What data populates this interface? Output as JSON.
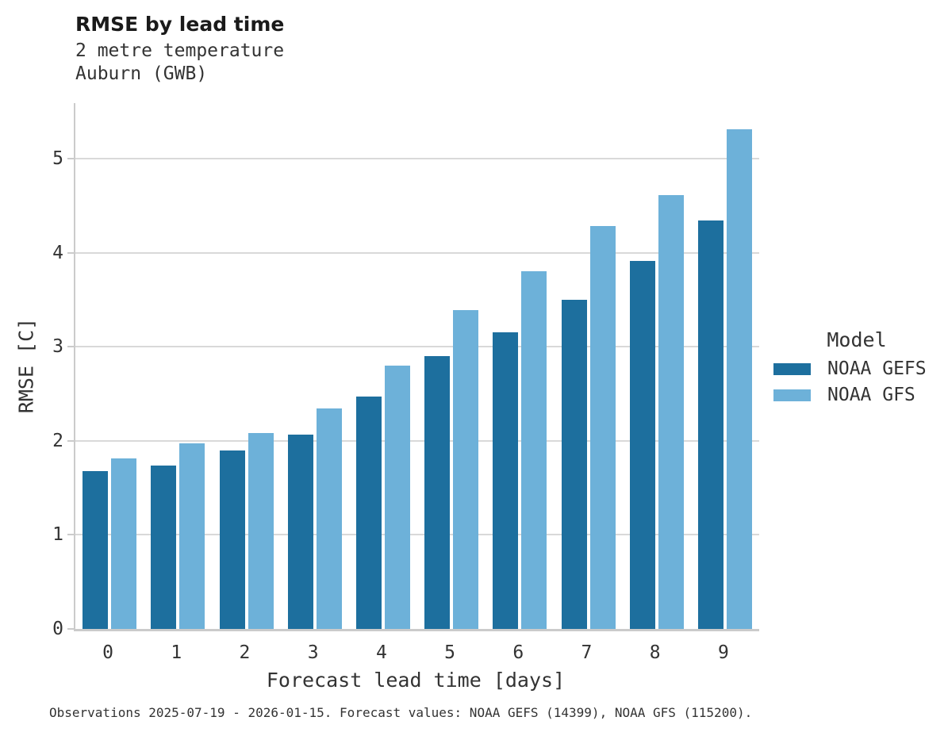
{
  "header": {
    "title": "RMSE by lead time",
    "subtitle_line1": "2 metre temperature",
    "subtitle_line2": "Auburn (GWB)"
  },
  "chart_data": {
    "type": "bar",
    "title": "RMSE by lead time",
    "subtitle": [
      "2 metre temperature",
      "Auburn (GWB)"
    ],
    "categories": [
      "0",
      "1",
      "2",
      "3",
      "4",
      "5",
      "6",
      "7",
      "8",
      "9"
    ],
    "series": [
      {
        "name": "NOAA GEFS",
        "color": "#1d6f9e",
        "values": [
          1.68,
          1.74,
          1.9,
          2.07,
          2.47,
          2.9,
          3.15,
          3.5,
          3.91,
          4.34
        ]
      },
      {
        "name": "NOAA GFS",
        "color": "#6db1d9",
        "values": [
          1.81,
          1.97,
          2.08,
          2.34,
          2.8,
          3.39,
          3.8,
          4.28,
          4.61,
          5.31
        ]
      }
    ],
    "xlabel": "Forecast lead time [days]",
    "ylabel": "RMSE [C]",
    "ylim": [
      0,
      5.59
    ],
    "yticks": [
      "0",
      "1",
      "2",
      "3",
      "4",
      "5"
    ],
    "grid": "horizontal",
    "legend_title": "Model",
    "legend_position": "right"
  },
  "legend": {
    "title": "Model",
    "entries": [
      {
        "label": "NOAA GEFS",
        "color": "#1d6f9e"
      },
      {
        "label": "NOAA GFS",
        "color": "#6db1d9"
      }
    ]
  },
  "caption": "Observations 2025-07-19 - 2026-01-15. Forecast values: NOAA GEFS (14399), NOAA GFS (115200).",
  "colors": {
    "gefs_dark_blue": "#1d6f9e",
    "gfs_light_blue": "#6db1d9",
    "gridline": "#d9d9d9",
    "axis_spine": "#cbcbcb",
    "title_text": "#1a1a1a",
    "body_text": "#333333"
  }
}
